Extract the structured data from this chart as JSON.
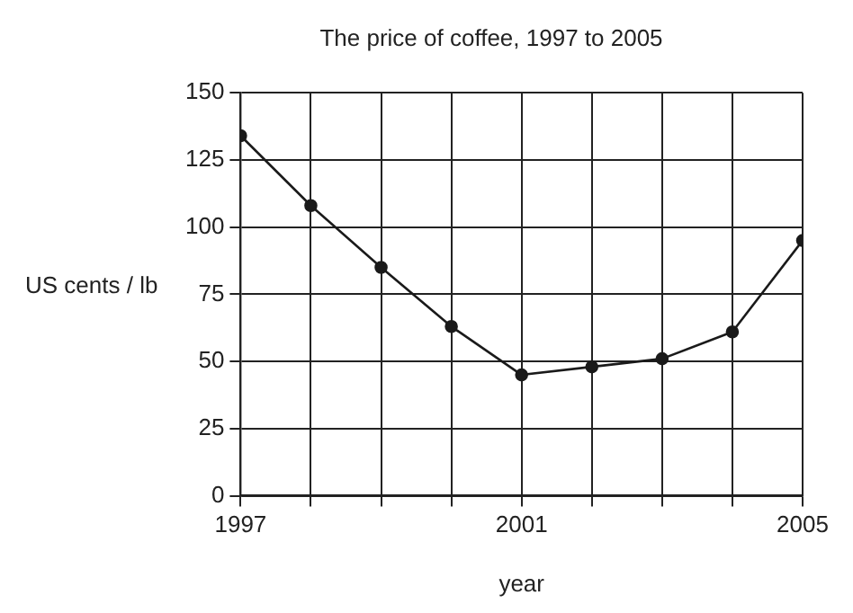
{
  "chart_data": {
    "type": "line",
    "title": "The price of coffee, 1997 to 2005",
    "xlabel": "year",
    "ylabel": "US cents / lb",
    "x": [
      1997,
      1998,
      1999,
      2000,
      2001,
      2002,
      2003,
      2004,
      2005
    ],
    "series": [
      {
        "color": "#1a1a1a",
        "values": [
          134,
          108,
          85,
          63,
          45,
          48,
          51,
          61,
          95
        ]
      }
    ],
    "xlim": [
      1997,
      2005
    ],
    "xticks": [
      1997,
      {
        "value": 1998,
        "label": null
      },
      {
        "value": 1999,
        "label": null
      },
      {
        "value": 2000,
        "label": null
      },
      2001,
      {
        "value": 2002,
        "label": null
      },
      {
        "value": 2003,
        "label": null
      },
      {
        "value": 2004,
        "label": null
      },
      2005
    ],
    "ylim": [
      0,
      150
    ],
    "yticks": [
      0,
      25,
      50,
      75,
      100,
      125,
      150
    ],
    "grid": true,
    "legend": false,
    "marker": "circle",
    "line_style": "solid"
  }
}
